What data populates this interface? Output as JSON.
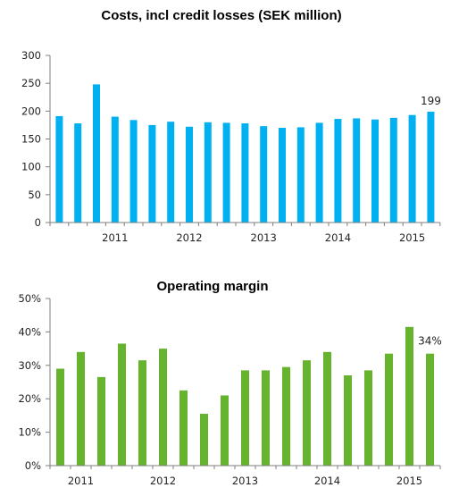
{
  "chart_data": [
    {
      "type": "bar",
      "title": "Costs, incl credit losses (SEK million)",
      "xlabel": "",
      "ylabel": "",
      "ylim": [
        0,
        300
      ],
      "yticks": [
        "0",
        "50",
        "100",
        "150",
        "200",
        "250",
        "300"
      ],
      "year_labels": [
        "2011",
        "2012",
        "2013",
        "2014",
        "2015"
      ],
      "year_label_positions": [
        3.5,
        7.5,
        11.5,
        15.5,
        19.5
      ],
      "values": [
        191,
        178,
        248,
        190,
        184,
        175,
        181,
        172,
        180,
        179,
        178,
        173,
        170,
        171,
        179,
        186,
        187,
        185,
        188,
        193,
        199
      ],
      "annotation": "199",
      "bar_color": "#00B0F0",
      "grid": false,
      "legend": "none"
    },
    {
      "type": "bar",
      "title": "Operating margin",
      "xlabel": "",
      "ylabel": "",
      "ylim": [
        0,
        50
      ],
      "yticks": [
        "0%",
        "10%",
        "20%",
        "30%",
        "40%",
        "50%"
      ],
      "year_labels": [
        "2011",
        "2012",
        "2013",
        "2014",
        "2015"
      ],
      "year_label_positions": [
        1.5,
        5.5,
        9.5,
        13.5,
        17.5
      ],
      "values": [
        29,
        34,
        26.5,
        36.5,
        31.5,
        35,
        22.5,
        15.5,
        21,
        28.5,
        28.5,
        29.5,
        31.5,
        34,
        27,
        28.5,
        33.5,
        41.5,
        33.5
      ],
      "annotation": "34%",
      "bar_color": "#66B32E",
      "grid": false,
      "legend": "none"
    }
  ]
}
